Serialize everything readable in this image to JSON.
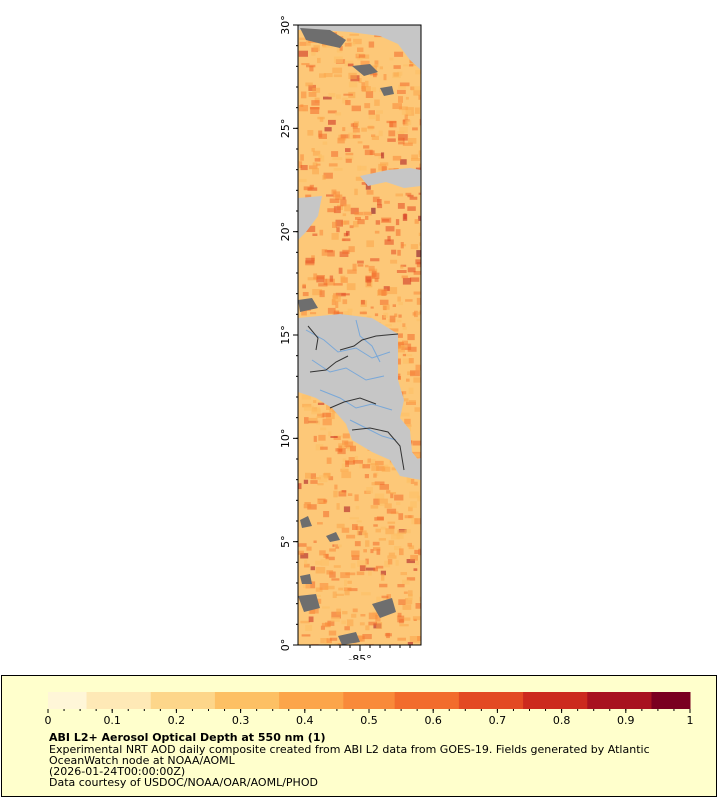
{
  "map": {
    "lat_ticks": [
      "0°",
      "5°",
      "10°",
      "15°",
      "20°",
      "25°",
      "30°"
    ],
    "lon_ticks": [
      "-85°"
    ],
    "colors": {
      "ocean_low": "#fde9b0",
      "ocean_mid": "#fdb35c",
      "ocean_high": "#e8472a",
      "land": "#c8c8c8",
      "missing": "#6e6e6e",
      "river": "#7aa8d8",
      "border": "#222222"
    }
  },
  "legend": {
    "ticks": [
      "0",
      "0.1",
      "0.2",
      "0.3",
      "0.4",
      "0.5",
      "0.6",
      "0.7",
      "0.8",
      "0.9",
      "1"
    ],
    "colormap": [
      "#fff6d8",
      "#fee9b6",
      "#fdd68a",
      "#fdc064",
      "#fca54a",
      "#f98a3a",
      "#f26c2c",
      "#e34a23",
      "#cc2a1e",
      "#a8121f",
      "#7a0020"
    ],
    "title": "ABI L2+ Aerosol Optical Depth at 550 nm (1)",
    "line1": "Experimental NRT AOD daily composite created from ABI L2 data from GOES-19. Fields generated by Atlantic",
    "line2": "OceanWatch node at NOAA/AOML",
    "line3": "(2026-01-24T00:00:00Z)",
    "line4": "Data courtesy of USDOC/NOAA/OAR/AOML/PHOD"
  }
}
